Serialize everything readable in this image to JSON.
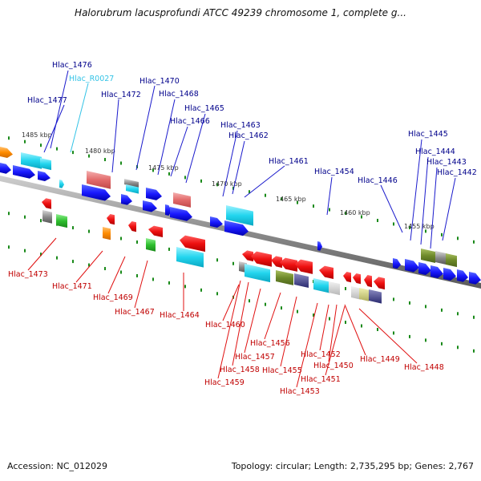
{
  "title": "Halorubrum lacusprofundi ATCC 49239 chromosome 1, complete g...",
  "footer": {
    "accession": "Accession: NC_012029",
    "summary": "Topology: circular; Length: 2,735,295 bp; Genes: 2,767"
  },
  "colors": {
    "blue": "#1a1aff",
    "red": "#e01010",
    "cyan": "#19c5e0",
    "pink": "#e07070",
    "orange": "#ff8c00",
    "green": "#2fbf2f",
    "olive": "#6e8a2a",
    "blue_label": "#00008b",
    "red_label": "#c00000",
    "trna_label": "#33c3e6"
  },
  "scale_labels": [
    "1485 kbp",
    "1480 kbp",
    "1475 kbp",
    "1470 kbp",
    "1465 kbp",
    "1460 kbp",
    "1455 kbp"
  ],
  "top_labels": [
    "Hlac_1476",
    "Hlac_R0027",
    "Hlac_1477",
    "Hlac_1470",
    "Hlac_1472",
    "Hlac_1468",
    "Hlac_1465",
    "Hlac_1466",
    "Hlac_1463",
    "Hlac_1462",
    "Hlac_1461",
    "Hlac_1454",
    "Hlac_1446",
    "Hlac_1445",
    "Hlac_1444",
    "Hlac_1443",
    "Hlac_1442"
  ],
  "bottom_labels": [
    "Hlac_1473",
    "Hlac_1471",
    "Hlac_1469",
    "Hlac_1467",
    "Hlac_1464",
    "Hlac_1460",
    "Hlac_1456",
    "Hlac_1457",
    "Hlac_1455",
    "Hlac_1458",
    "Hlac_1459",
    "Hlac_1452",
    "Hlac_1450",
    "Hlac_1449",
    "Hlac_1451",
    "Hlac_1448",
    "Hlac_1453"
  ]
}
